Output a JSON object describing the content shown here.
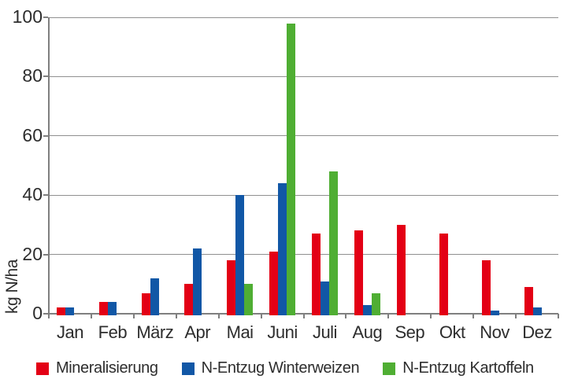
{
  "chart_data": {
    "type": "bar",
    "title": "",
    "xlabel": "",
    "ylabel": "kg N/ha",
    "ylim": [
      0,
      100
    ],
    "yticks": [
      0,
      20,
      40,
      60,
      80,
      100
    ],
    "grid": "horizontal",
    "legend_position": "bottom",
    "categories": [
      "Jan",
      "Feb",
      "März",
      "Apr",
      "Mai",
      "Juni",
      "Juli",
      "Aug",
      "Sep",
      "Okt",
      "Nov",
      "Dez"
    ],
    "series": [
      {
        "name": "Mineralisierung",
        "color": "#e30015",
        "values": [
          2,
          4,
          7,
          10,
          18,
          21,
          27,
          28,
          30,
          27,
          18,
          9
        ]
      },
      {
        "name": "N-Entzug Winterweizen",
        "color": "#1157a6",
        "values": [
          2,
          4,
          12,
          22,
          40,
          44,
          11,
          3,
          0,
          0,
          1,
          2
        ]
      },
      {
        "name": "N-Entzug Kartoffeln",
        "color": "#4fae33",
        "values": [
          0,
          0,
          0,
          0,
          10,
          98,
          48,
          7,
          0,
          0,
          0,
          0
        ]
      }
    ]
  },
  "colors": {
    "gridline": "#909090",
    "axis": "#7f7f7f",
    "text": "#2d2d2d"
  }
}
